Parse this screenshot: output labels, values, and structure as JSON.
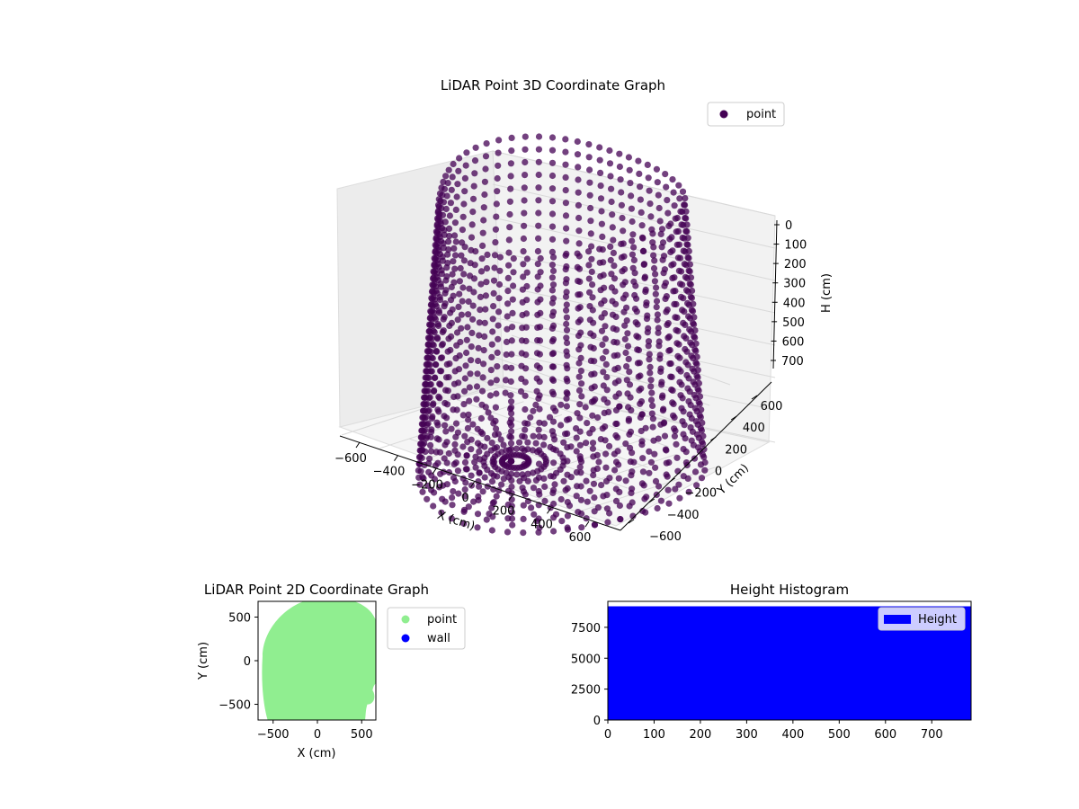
{
  "chart_data": [
    {
      "type": "scatter",
      "projection": "3d",
      "title": "LiDAR Point 3D Coordinate Graph",
      "xlabel": "X (cm)",
      "ylabel": "Y (cm)",
      "zlabel": "H (cm)",
      "xticks": [
        "−600",
        "−400",
        "−200",
        "0",
        "200",
        "400",
        "600"
      ],
      "yticks": [
        "−600",
        "−400",
        "−200",
        "0",
        "200",
        "400",
        "600"
      ],
      "zticks": [
        "0",
        "100",
        "200",
        "300",
        "400",
        "500",
        "600",
        "700"
      ],
      "xlim": [
        -650,
        650
      ],
      "ylim": [
        -650,
        650
      ],
      "zlim": [
        0,
        780
      ],
      "z_inverted": true,
      "grid": true,
      "legend_position": "top-right",
      "series": [
        {
          "name": "point",
          "color": "#440154",
          "description_values": "dense ring of points, radius about 400 to 650 cm, heights 0 to 750 cm"
        }
      ]
    },
    {
      "type": "scatter",
      "title": "LiDAR Point 2D Coordinate Graph",
      "xlabel": "X (cm)",
      "ylabel": "Y (cm)",
      "xticks": [
        "−500",
        "0",
        "500"
      ],
      "yticks": [
        "−500",
        "0",
        "500"
      ],
      "xlim": [
        -670,
        660
      ],
      "ylim": [
        -680,
        680
      ],
      "legend_position": "outside-right",
      "series": [
        {
          "name": "point",
          "color": "#90ee90"
        },
        {
          "name": "wall",
          "color": "#0000ff"
        }
      ]
    },
    {
      "type": "bar",
      "title": "Height Histogram",
      "xticks": [
        "0",
        "100",
        "200",
        "300",
        "400",
        "500",
        "600",
        "700"
      ],
      "yticks": [
        "0",
        "2500",
        "5000",
        "7500"
      ],
      "xlim": [
        0,
        785
      ],
      "ylim": [
        0,
        9600
      ],
      "value": 9200,
      "legend_position": "top-right",
      "series": [
        {
          "name": "Height",
          "color": "#0000ff"
        }
      ]
    }
  ]
}
